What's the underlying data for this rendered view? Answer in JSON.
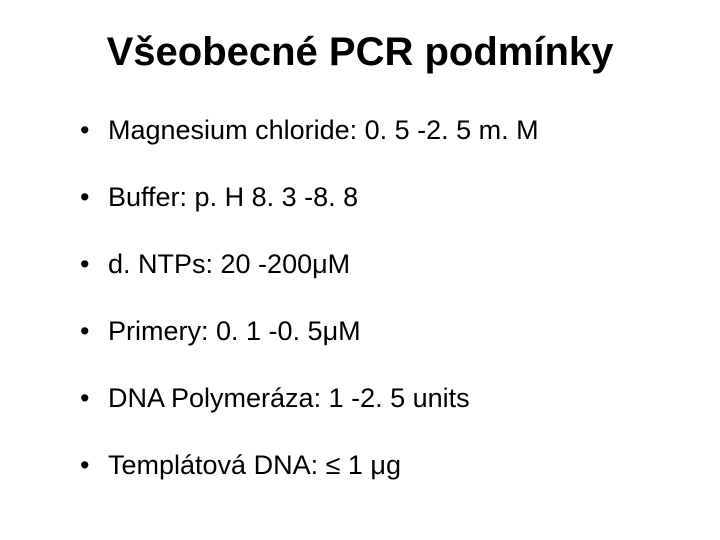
{
  "slide": {
    "title": "Všeobecné PCR podmínky",
    "items": [
      "Magnesium chloride: 0. 5 -2. 5 m. M",
      "Buffer: p. H 8. 3 -8. 8",
      "d. NTPs: 20 -200μM",
      "Primery: 0. 1 -0. 5μM",
      "DNA Polymeráza: 1 -2. 5 units",
      "Templátová DNA: ≤ 1 μg"
    ],
    "colors": {
      "background": "#ffffff",
      "text": "#000000"
    },
    "typography": {
      "title_fontsize": 40,
      "title_weight": "bold",
      "item_fontsize": 27,
      "font_family": "Arial"
    }
  }
}
